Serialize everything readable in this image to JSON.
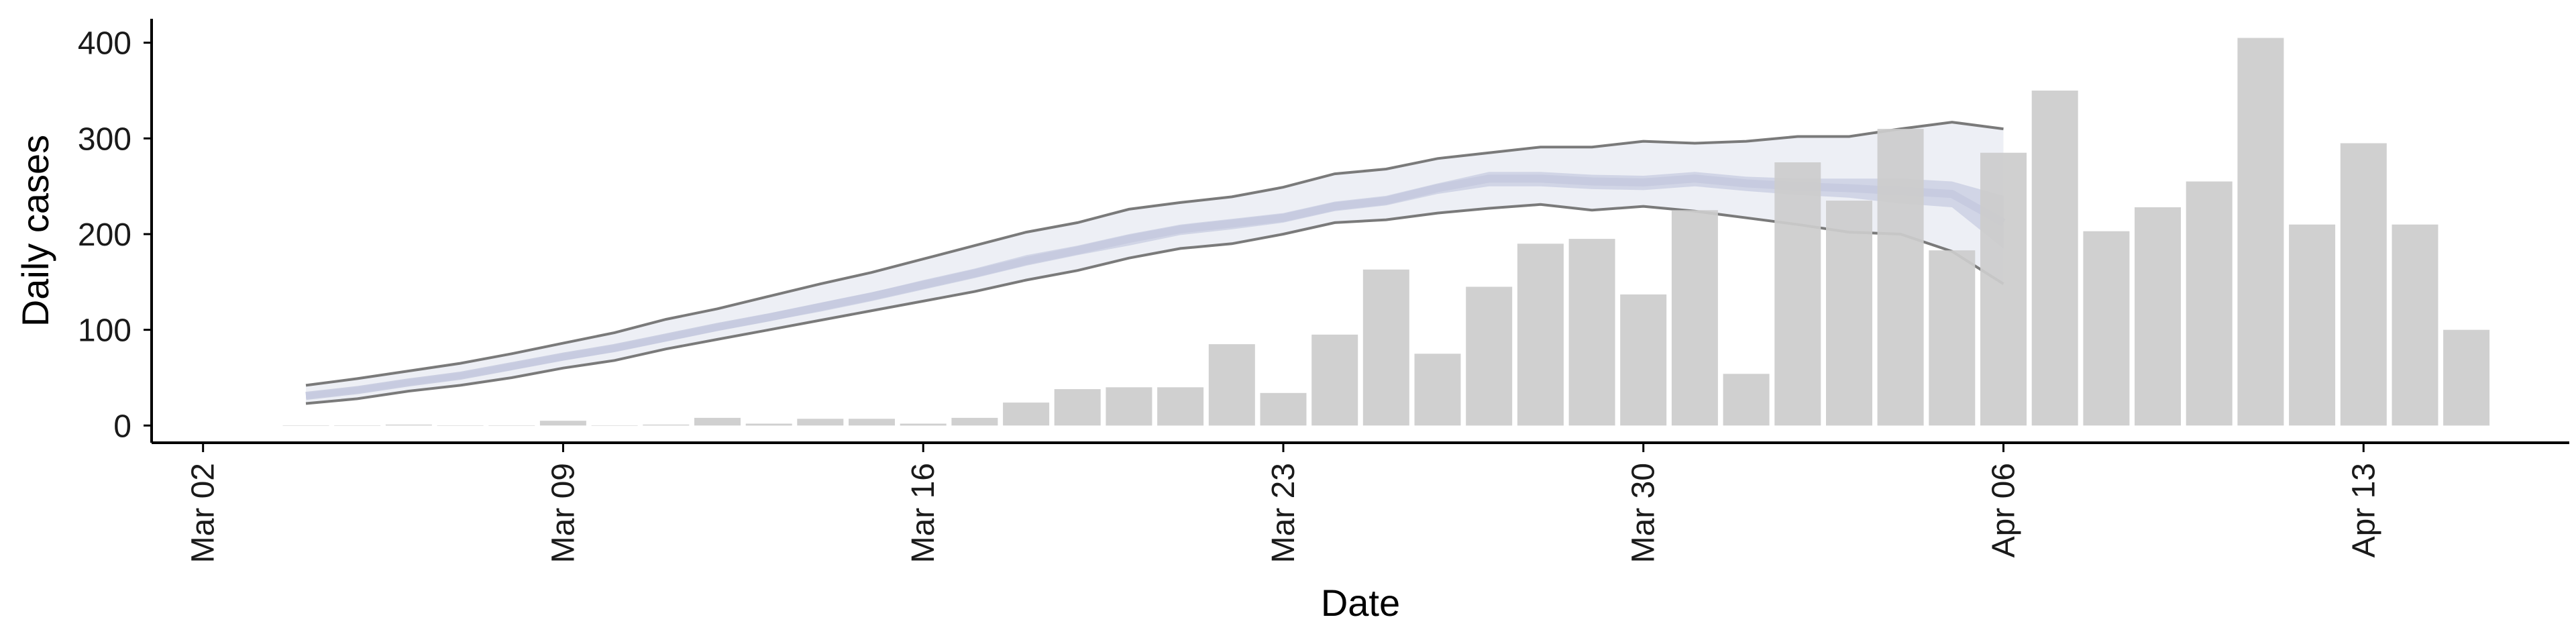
{
  "chart_data": {
    "type": "bar",
    "xlabel": "Date",
    "ylabel": "Daily cases",
    "ylim": [
      -18,
      425
    ],
    "x_tick_labels": [
      "Mar 02",
      "Mar 09",
      "Mar 16",
      "Mar 23",
      "Mar 30",
      "Apr 06",
      "Apr 13"
    ],
    "x_tick_dates": [
      "2020-03-02",
      "2020-03-09",
      "2020-03-16",
      "2020-03-23",
      "2020-03-30",
      "2020-04-06",
      "2020-04-13"
    ],
    "xlim": [
      "2020-03-01",
      "2020-04-17"
    ],
    "y_ticks": [
      0,
      100,
      200,
      300,
      400
    ],
    "grid": false,
    "legend": "none",
    "bars": {
      "color": "#cccccc",
      "dates": [
        "2020-03-04",
        "2020-03-05",
        "2020-03-06",
        "2020-03-07",
        "2020-03-08",
        "2020-03-09",
        "2020-03-10",
        "2020-03-11",
        "2020-03-12",
        "2020-03-13",
        "2020-03-14",
        "2020-03-15",
        "2020-03-16",
        "2020-03-17",
        "2020-03-18",
        "2020-03-19",
        "2020-03-20",
        "2020-03-21",
        "2020-03-22",
        "2020-03-23",
        "2020-03-24",
        "2020-03-25",
        "2020-03-26",
        "2020-03-27",
        "2020-03-28",
        "2020-03-29",
        "2020-03-30",
        "2020-03-31",
        "2020-04-01",
        "2020-04-02",
        "2020-04-03",
        "2020-04-04",
        "2020-04-05",
        "2020-04-06",
        "2020-04-07",
        "2020-04-08",
        "2020-04-09",
        "2020-04-10",
        "2020-04-11",
        "2020-04-12",
        "2020-04-13",
        "2020-04-14",
        "2020-04-15"
      ],
      "values": [
        0,
        0,
        1,
        0,
        0,
        5,
        0,
        1,
        8,
        2,
        7,
        7,
        2,
        8,
        24,
        38,
        40,
        40,
        85,
        34,
        95,
        163,
        75,
        145,
        190,
        195,
        137,
        225,
        54,
        275,
        235,
        310,
        183,
        285,
        350,
        203,
        228,
        255,
        405,
        210,
        295,
        210,
        100
      ]
    },
    "band": {
      "dates": [
        "2020-03-04",
        "2020-03-05",
        "2020-03-06",
        "2020-03-07",
        "2020-03-08",
        "2020-03-09",
        "2020-03-10",
        "2020-03-11",
        "2020-03-12",
        "2020-03-13",
        "2020-03-14",
        "2020-03-15",
        "2020-03-16",
        "2020-03-17",
        "2020-03-18",
        "2020-03-19",
        "2020-03-20",
        "2020-03-21",
        "2020-03-22",
        "2020-03-23",
        "2020-03-24",
        "2020-03-25",
        "2020-03-26",
        "2020-03-27",
        "2020-03-28",
        "2020-03-29",
        "2020-03-30",
        "2020-03-31",
        "2020-04-01",
        "2020-04-02",
        "2020-04-03",
        "2020-04-04",
        "2020-04-05",
        "2020-04-06"
      ],
      "outer_upper": [
        42,
        49,
        57,
        65,
        75,
        86,
        97,
        111,
        122,
        135,
        148,
        160,
        174,
        188,
        202,
        212,
        226,
        233,
        239,
        249,
        263,
        268,
        279,
        285,
        291,
        291,
        297,
        295,
        297,
        302,
        302,
        310,
        317,
        310
      ],
      "outer_lower": [
        23,
        28,
        36,
        42,
        50,
        60,
        68,
        80,
        90,
        100,
        110,
        120,
        130,
        140,
        152,
        162,
        175,
        185,
        190,
        200,
        212,
        215,
        222,
        227,
        231,
        225,
        229,
        224,
        217,
        210,
        202,
        200,
        182,
        148
      ],
      "inner_upper": [
        34,
        40,
        48,
        55,
        65,
        75,
        84,
        95,
        106,
        117,
        128,
        139,
        152,
        164,
        178,
        188,
        200,
        210,
        216,
        222,
        234,
        240,
        253,
        265,
        265,
        262,
        261,
        265,
        260,
        258,
        258,
        258,
        255,
        240
      ],
      "inner_lower": [
        28,
        34,
        42,
        49,
        58,
        68,
        77,
        88,
        99,
        109,
        119,
        130,
        142,
        154,
        167,
        178,
        188,
        199,
        205,
        212,
        224,
        230,
        242,
        250,
        250,
        247,
        246,
        250,
        245,
        241,
        238,
        232,
        228,
        185
      ],
      "median": [
        31,
        37,
        45,
        52,
        62,
        72,
        81,
        92,
        103,
        113,
        124,
        135,
        147,
        159,
        172,
        183,
        195,
        205,
        211,
        217,
        229,
        235,
        248,
        258,
        258,
        255,
        254,
        258,
        253,
        250,
        248,
        245,
        242,
        212
      ],
      "outer_color": "#dfe1ec",
      "inner_color": "#c5cadf",
      "line_color": "#7a7a7a"
    }
  }
}
